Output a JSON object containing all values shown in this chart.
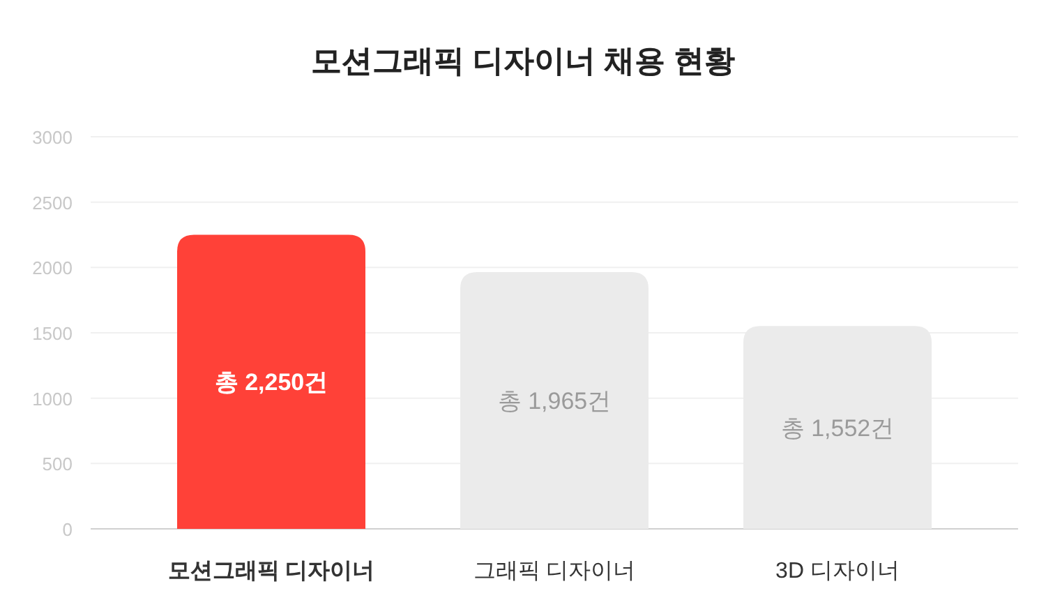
{
  "chart_data": {
    "type": "bar",
    "title": "모션그래픽 디자이너 채용 현황",
    "categories": [
      "모션그래픽 디자이너",
      "그래픽 디자이너",
      "3D 디자이너"
    ],
    "values": [
      2250,
      1965,
      1552
    ],
    "colors": [
      "#ff4138",
      "#ebebeb",
      "#ebebeb"
    ],
    "value_labels": [
      "총 2,250건",
      "총 1,965건",
      "총 1,552건"
    ],
    "ylim": [
      0,
      3000
    ],
    "yticks": [
      0,
      500,
      1000,
      1500,
      2000,
      2500,
      3000
    ],
    "grid": "y"
  }
}
